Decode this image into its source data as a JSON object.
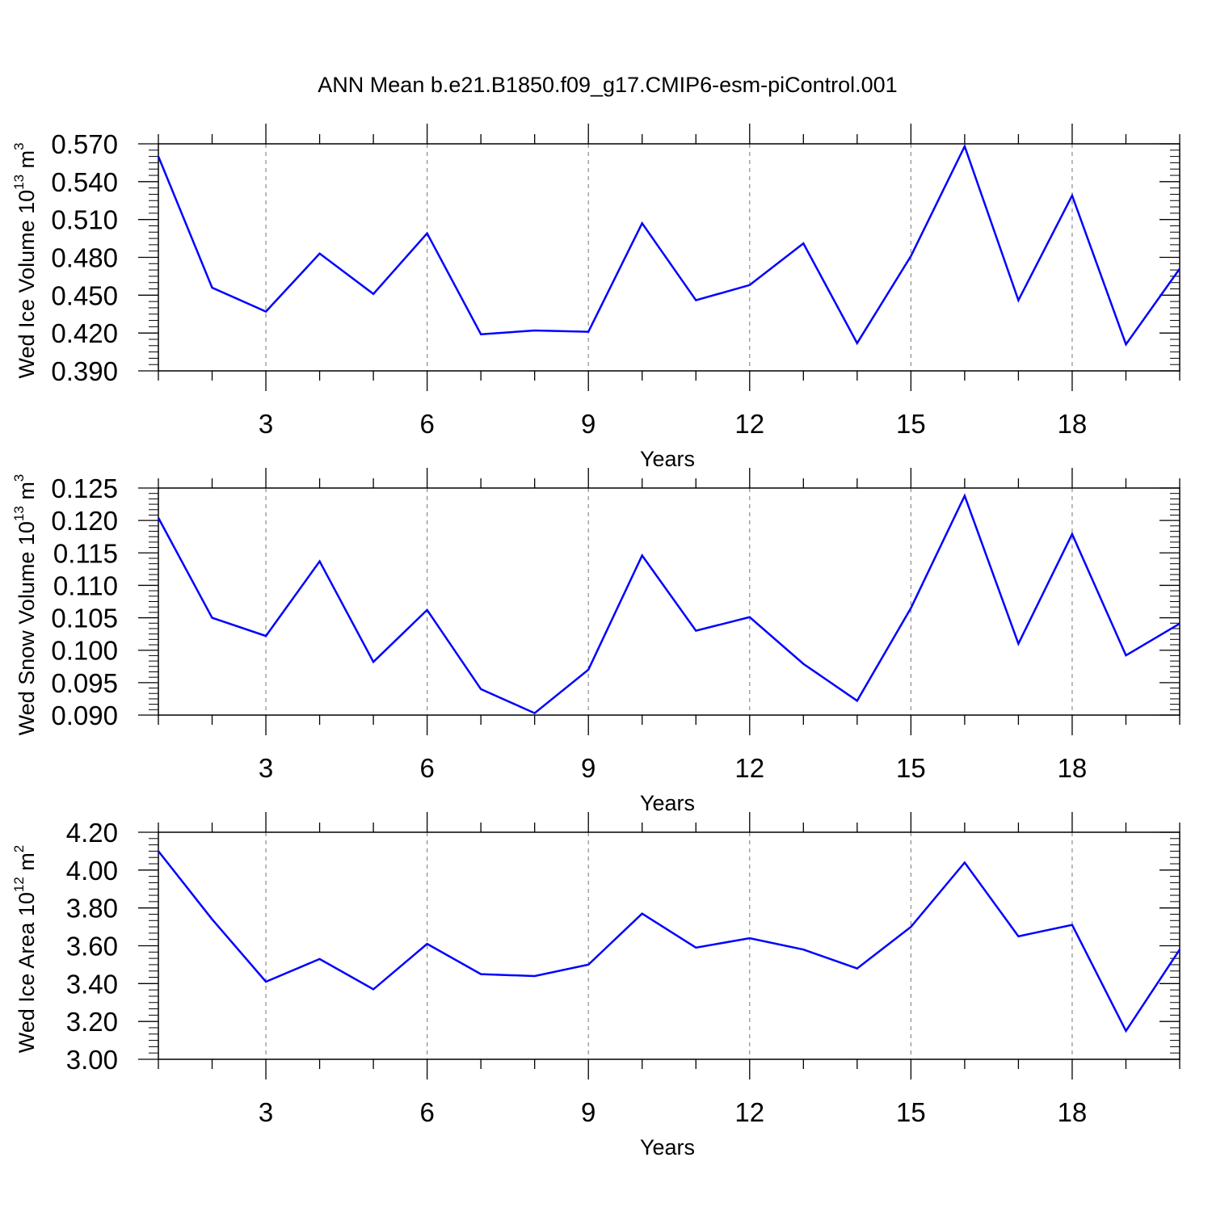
{
  "title": "ANN Mean b.e21.B1850.f09_g17.CMIP6-esm-piControl.001",
  "colors": {
    "series": "#0000ff",
    "axis": "#000000",
    "grid": "#8c8c8c"
  },
  "chart_data": [
    {
      "type": "line",
      "ylabel": "Wed Ice Volume",
      "yunit_base": "10",
      "yunit_exp": "13",
      "yunit_tail": " m",
      "yunit_tail_exp": "3",
      "xlabel": "Years",
      "xlim": [
        1,
        20
      ],
      "ylim": [
        0.39,
        0.57
      ],
      "xticks": [
        3,
        6,
        9,
        12,
        15,
        18
      ],
      "xtick_labels": [
        "3",
        "6",
        "9",
        "12",
        "15",
        "18"
      ],
      "yticks": [
        0.39,
        0.42,
        0.45,
        0.48,
        0.51,
        0.54,
        0.57
      ],
      "ytick_labels": [
        "0.390",
        "0.420",
        "0.450",
        "0.480",
        "0.510",
        "0.540",
        "0.570"
      ],
      "grid": "vertical dashed at major x ticks",
      "x": [
        1,
        2,
        3,
        4,
        5,
        6,
        7,
        8,
        9,
        10,
        11,
        12,
        13,
        14,
        15,
        16,
        17,
        18,
        19,
        20
      ],
      "values": [
        0.56,
        0.456,
        0.437,
        0.483,
        0.451,
        0.499,
        0.419,
        0.422,
        0.421,
        0.507,
        0.446,
        0.458,
        0.491,
        0.412,
        0.481,
        0.568,
        0.446,
        0.529,
        0.411,
        0.471
      ]
    },
    {
      "type": "line",
      "ylabel": "Wed Snow Volume",
      "yunit_base": "10",
      "yunit_exp": "13",
      "yunit_tail": " m",
      "yunit_tail_exp": "3",
      "xlabel": "Years",
      "xlim": [
        1,
        20
      ],
      "ylim": [
        0.09,
        0.125
      ],
      "xticks": [
        3,
        6,
        9,
        12,
        15,
        18
      ],
      "xtick_labels": [
        "3",
        "6",
        "9",
        "12",
        "15",
        "18"
      ],
      "yticks": [
        0.09,
        0.095,
        0.1,
        0.105,
        0.11,
        0.115,
        0.12,
        0.125
      ],
      "ytick_labels": [
        "0.090",
        "0.095",
        "0.100",
        "0.105",
        "0.110",
        "0.115",
        "0.120",
        "0.125"
      ],
      "grid": "vertical dashed at major x ticks",
      "x": [
        1,
        2,
        3,
        4,
        5,
        6,
        7,
        8,
        9,
        10,
        11,
        12,
        13,
        14,
        15,
        16,
        17,
        18,
        19,
        20
      ],
      "values": [
        0.1204,
        0.105,
        0.1022,
        0.1137,
        0.0982,
        0.1062,
        0.094,
        0.0903,
        0.097,
        0.1146,
        0.103,
        0.1051,
        0.0979,
        0.0922,
        0.1065,
        0.1238,
        0.101,
        0.1179,
        0.0992,
        0.1041
      ]
    },
    {
      "type": "line",
      "ylabel": "Wed Ice Area",
      "yunit_base": "10",
      "yunit_exp": "12",
      "yunit_tail": " m",
      "yunit_tail_exp": "2",
      "xlabel": "Years",
      "xlim": [
        1,
        20
      ],
      "ylim": [
        3.0,
        4.2
      ],
      "xticks": [
        3,
        6,
        9,
        12,
        15,
        18
      ],
      "xtick_labels": [
        "3",
        "6",
        "9",
        "12",
        "15",
        "18"
      ],
      "yticks": [
        3.0,
        3.2,
        3.4,
        3.6,
        3.8,
        4.0,
        4.2
      ],
      "ytick_labels": [
        "3.00",
        "3.20",
        "3.40",
        "3.60",
        "3.80",
        "4.00",
        "4.20"
      ],
      "grid": "vertical dashed at major x ticks",
      "x": [
        1,
        2,
        3,
        4,
        5,
        6,
        7,
        8,
        9,
        10,
        11,
        12,
        13,
        14,
        15,
        16,
        17,
        18,
        19,
        20
      ],
      "values": [
        4.1,
        3.74,
        3.41,
        3.53,
        3.37,
        3.61,
        3.45,
        3.44,
        3.5,
        3.77,
        3.59,
        3.64,
        3.58,
        3.48,
        3.7,
        4.04,
        3.65,
        3.71,
        3.15,
        3.58
      ]
    }
  ]
}
